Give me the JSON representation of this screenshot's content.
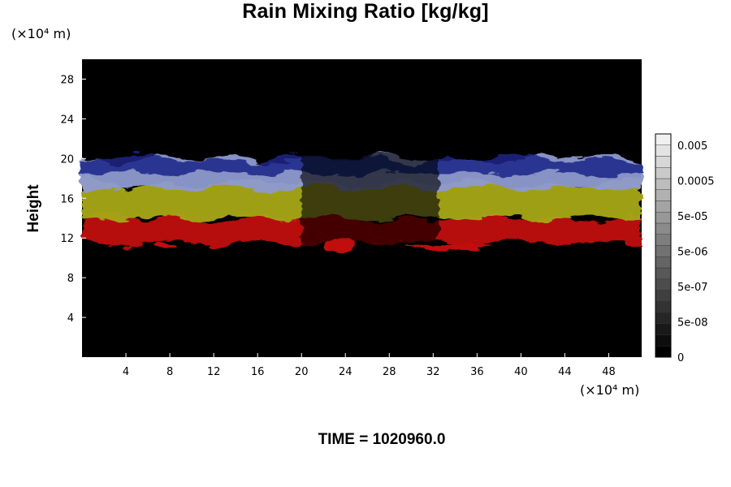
{
  "chart_data": {
    "type": "heatmap",
    "title": "Rain Mixing Ratio [kg/kg]",
    "ylabel": "Height",
    "xlabel": "",
    "x_unit_label": "(×10⁴ m)",
    "y_unit_label": "(×10⁴ m)",
    "xlim": [
      0,
      51
    ],
    "ylim": [
      0,
      30
    ],
    "x_ticks": [
      4,
      8,
      12,
      16,
      20,
      24,
      28,
      32,
      36,
      40,
      44,
      48
    ],
    "y_ticks": [
      4,
      8,
      12,
      16,
      20,
      24,
      28
    ],
    "colorbar": {
      "levels": 20,
      "tick_labels": [
        "0",
        "5e-08",
        "5e-07",
        "5e-06",
        "5e-05",
        "0.0005",
        "0.005"
      ]
    },
    "layers": [
      {
        "name": "low",
        "color": "#c01010",
        "bottom": 11.5,
        "top": 14
      },
      {
        "name": "mid",
        "color": "#a8a818",
        "bottom": 14,
        "top": 17.5
      },
      {
        "name": "upper",
        "color": "#8e9ad0",
        "bottom": 17,
        "top": 20
      },
      {
        "name": "top",
        "color": "#1c2488",
        "bottom": 18.5,
        "top": 20
      }
    ],
    "rain_patches": [
      {
        "x": [
          6.5,
          8.5
        ],
        "y": [
          10.9,
          11.6
        ]
      },
      {
        "x": [
          22,
          25
        ],
        "y": [
          10.5,
          11.9
        ]
      },
      {
        "x": [
          29.5,
          37.2
        ],
        "y": [
          10.8,
          11.4
        ]
      }
    ]
  },
  "footer": {
    "label": "TIME = 1020960.0"
  }
}
